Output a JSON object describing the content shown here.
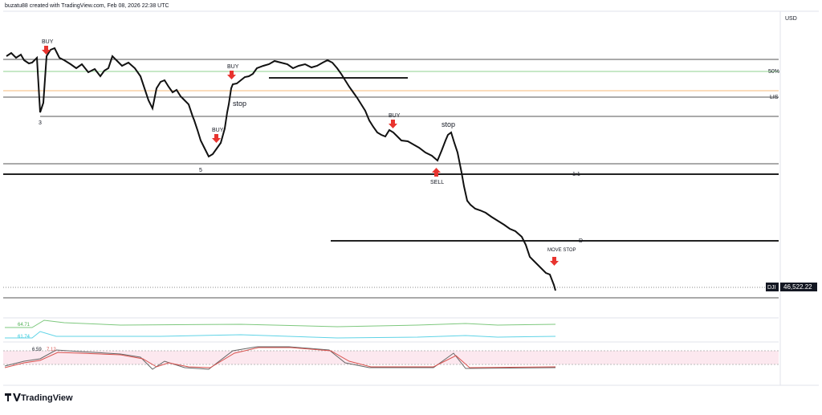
{
  "header": {
    "credit": "buzatu88 created with TradingView.com, Feb 08, 2026 22:38 UTC"
  },
  "currency": "USD",
  "annotations": [
    "BUY",
    "BUY",
    "BUY",
    "BUY",
    "stop",
    "stop",
    "SELL",
    "MOVE STOP"
  ],
  "wave_labels": [
    "3",
    "5"
  ],
  "levels": [
    "50%",
    "LIS",
    "1:1",
    "D"
  ],
  "price": {
    "symbol": "DJI",
    "value": "46,522.22"
  },
  "indicators": {
    "line_a": "64.71",
    "line_b": "61.74",
    "stoch_k": "6.59",
    "stoch_d": "7.12"
  },
  "footer": {
    "brand": "TradingView"
  }
}
